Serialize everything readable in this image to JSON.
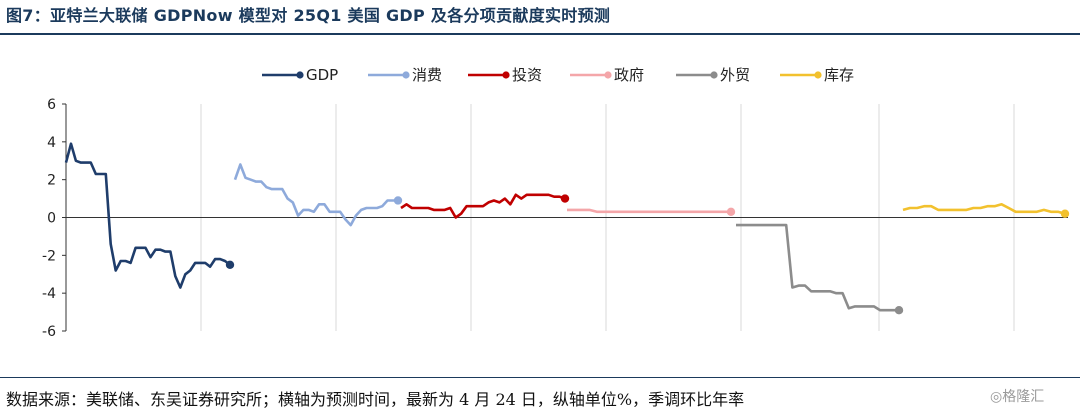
{
  "title": "图7：亚特兰大联储 GDPNow 模型对 25Q1 美国 GDP 及各分项贡献度实时预测",
  "source": "数据来源：美联储、东吴证券研究所；横轴为预测时间，最新为 4 月 24 日，纵轴单位%，季调环比年率",
  "watermark": "◎格隆汇",
  "chart_data": {
    "type": "line",
    "title": "图7：亚特兰大联储 GDPNow 模型对 25Q1 美国 GDP 及各分项贡献度实时预测",
    "xlabel": "",
    "ylabel": "",
    "ylim": [
      -6,
      6
    ],
    "yticks": [
      -6,
      -4,
      -2,
      0,
      2,
      4,
      6
    ],
    "ytick_labels": [
      "-6",
      "-4",
      "-2",
      "0",
      "2",
      "4",
      "6"
    ],
    "grid": "vertical",
    "legend_position": "top-center",
    "series": [
      {
        "name": "GDP",
        "color": "#1f3d6b",
        "values": [
          2.9,
          3.9,
          3.0,
          2.9,
          2.9,
          2.9,
          2.3,
          2.3,
          2.3,
          -1.4,
          -2.8,
          -2.3,
          -2.3,
          -2.4,
          -1.6,
          -1.6,
          -1.6,
          -2.1,
          -1.7,
          -1.7,
          -1.8,
          -1.8,
          -3.1,
          -3.7,
          -3.0,
          -2.8,
          -2.4,
          -2.4,
          -2.4,
          -2.6,
          -2.2,
          -2.2,
          -2.3,
          -2.5
        ]
      },
      {
        "name": "消费",
        "color": "#8eaadb",
        "values": [
          2.0,
          2.8,
          2.1,
          2.0,
          1.9,
          1.9,
          1.6,
          1.5,
          1.5,
          1.5,
          1.0,
          0.8,
          0.1,
          0.4,
          0.4,
          0.3,
          0.7,
          0.7,
          0.3,
          0.3,
          0.3,
          -0.1,
          -0.4,
          0.1,
          0.4,
          0.5,
          0.5,
          0.5,
          0.6,
          0.9,
          0.9,
          0.9
        ]
      },
      {
        "name": "投资",
        "color": "#c00000",
        "values": [
          0.5,
          0.7,
          0.5,
          0.5,
          0.5,
          0.5,
          0.4,
          0.4,
          0.4,
          0.5,
          0.0,
          0.2,
          0.6,
          0.6,
          0.6,
          0.6,
          0.8,
          0.9,
          0.8,
          1.0,
          0.7,
          1.2,
          1.0,
          1.2,
          1.2,
          1.2,
          1.2,
          1.2,
          1.1,
          1.1,
          1.0
        ]
      },
      {
        "name": "政府",
        "color": "#f4a6a9",
        "values": [
          0.4,
          0.4,
          0.4,
          0.4,
          0.3,
          0.3,
          0.3,
          0.3,
          0.3,
          0.3,
          0.3,
          0.3,
          0.3,
          0.3,
          0.3,
          0.3,
          0.3,
          0.3,
          0.3,
          0.3,
          0.3,
          0.3,
          0.3
        ]
      },
      {
        "name": "外贸",
        "color": "#8c8c8c",
        "values": [
          -0.4,
          -0.4,
          -0.4,
          -0.4,
          -0.4,
          -0.4,
          -0.4,
          -0.4,
          -0.4,
          -3.7,
          -3.6,
          -3.6,
          -3.9,
          -3.9,
          -3.9,
          -3.9,
          -4.0,
          -4.0,
          -4.8,
          -4.7,
          -4.7,
          -4.7,
          -4.7,
          -4.9,
          -4.9,
          -4.9,
          -4.9
        ]
      },
      {
        "name": "库存",
        "color": "#f2c12e",
        "values": [
          0.4,
          0.5,
          0.5,
          0.6,
          0.6,
          0.4,
          0.4,
          0.4,
          0.4,
          0.4,
          0.5,
          0.5,
          0.6,
          0.6,
          0.7,
          0.5,
          0.3,
          0.3,
          0.3,
          0.3,
          0.4,
          0.3,
          0.3,
          0.2
        ]
      }
    ]
  }
}
